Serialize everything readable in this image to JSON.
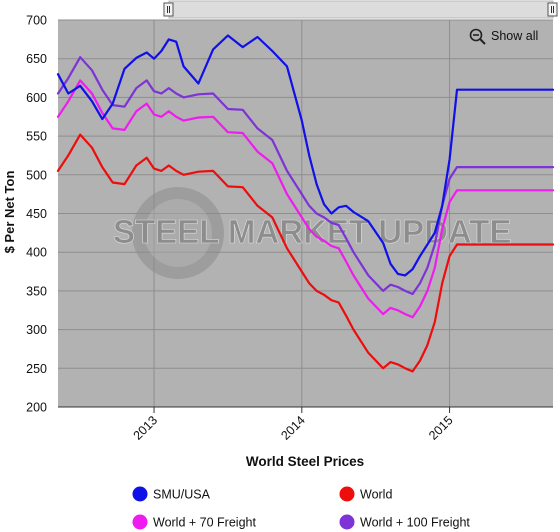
{
  "chart_data": {
    "type": "line",
    "title": "",
    "xlabel": "World Steel Prices",
    "ylabel": "$ Per Net Ton",
    "ylim": [
      200,
      700
    ],
    "yticks": [
      200,
      250,
      300,
      350,
      400,
      450,
      500,
      550,
      600,
      650,
      700
    ],
    "xlim": [
      2012.35,
      2015.7
    ],
    "xticks": [
      {
        "label": "2013",
        "value": 2013.0
      },
      {
        "label": "2014",
        "value": 2014.0
      },
      {
        "label": "2015",
        "value": 2015.0
      }
    ],
    "grid": true,
    "legend_position": "bottom",
    "watermark": "STEEL MARKET UPDATE",
    "zoom_button": "Show all",
    "series": [
      {
        "name": "SMU/USA",
        "color": "#1010e8",
        "x": [
          2012.35,
          2012.42,
          2012.5,
          2012.58,
          2012.65,
          2012.72,
          2012.8,
          2012.88,
          2012.95,
          2013.0,
          2013.05,
          2013.1,
          2013.15,
          2013.2,
          2013.3,
          2013.4,
          2013.5,
          2013.6,
          2013.7,
          2013.8,
          2013.9,
          2014.0,
          2014.05,
          2014.1,
          2014.15,
          2014.2,
          2014.25,
          2014.3,
          2014.35,
          2014.45,
          2014.55,
          2014.6,
          2014.65,
          2014.7,
          2014.75,
          2014.8,
          2014.85,
          2014.9,
          2014.95,
          2015.0,
          2015.05,
          2015.1,
          2015.2,
          2015.3,
          2015.4,
          2015.45,
          2015.5,
          2015.55,
          2015.6,
          2015.65,
          2015.7
        ],
        "values": [
          630,
          605,
          615,
          595,
          572,
          592,
          637,
          651,
          658,
          650,
          660,
          675,
          672,
          640,
          618,
          662,
          680,
          665,
          678,
          660,
          640,
          570,
          525,
          488,
          462,
          450,
          458,
          460,
          452,
          440,
          412,
          385,
          372,
          370,
          378,
          395,
          410,
          425,
          460,
          520,
          610,
          610,
          610,
          610,
          610,
          610,
          610,
          610,
          610,
          610,
          610
        ]
      },
      {
        "name": "World",
        "color": "#ee0d0d",
        "x": [
          2012.35,
          2012.42,
          2012.5,
          2012.58,
          2012.65,
          2012.72,
          2012.8,
          2012.88,
          2012.95,
          2013.0,
          2013.05,
          2013.1,
          2013.15,
          2013.2,
          2013.3,
          2013.4,
          2013.5,
          2013.6,
          2013.7,
          2013.8,
          2013.9,
          2014.0,
          2014.05,
          2014.1,
          2014.15,
          2014.2,
          2014.25,
          2014.3,
          2014.35,
          2014.45,
          2014.55,
          2014.6,
          2014.65,
          2014.7,
          2014.75,
          2014.8,
          2014.85,
          2014.9,
          2014.95,
          2015.0,
          2015.05,
          2015.1,
          2015.2,
          2015.3,
          2015.4,
          2015.45,
          2015.5,
          2015.55,
          2015.6,
          2015.65,
          2015.7
        ],
        "values": [
          505,
          525,
          552,
          535,
          510,
          490,
          488,
          512,
          522,
          508,
          505,
          512,
          505,
          500,
          504,
          505,
          485,
          484,
          460,
          445,
          405,
          375,
          360,
          350,
          345,
          338,
          335,
          318,
          300,
          270,
          250,
          258,
          255,
          250,
          246,
          260,
          280,
          310,
          360,
          395,
          410,
          410,
          410,
          410,
          410,
          410,
          410,
          410,
          410,
          410,
          410
        ]
      },
      {
        "name": "World + 70 Freight",
        "color": "#ee1cee",
        "x": [
          2012.35,
          2012.42,
          2012.5,
          2012.58,
          2012.65,
          2012.72,
          2012.8,
          2012.88,
          2012.95,
          2013.0,
          2013.05,
          2013.1,
          2013.15,
          2013.2,
          2013.3,
          2013.4,
          2013.5,
          2013.6,
          2013.7,
          2013.8,
          2013.9,
          2014.0,
          2014.05,
          2014.1,
          2014.15,
          2014.2,
          2014.25,
          2014.3,
          2014.35,
          2014.45,
          2014.55,
          2014.6,
          2014.65,
          2014.7,
          2014.75,
          2014.8,
          2014.85,
          2014.9,
          2014.95,
          2015.0,
          2015.05,
          2015.1,
          2015.2,
          2015.3,
          2015.4,
          2015.45,
          2015.5,
          2015.55,
          2015.6,
          2015.65,
          2015.7
        ],
        "values": [
          575,
          595,
          622,
          605,
          580,
          560,
          558,
          582,
          592,
          578,
          575,
          582,
          575,
          570,
          574,
          575,
          555,
          554,
          530,
          515,
          475,
          445,
          430,
          420,
          415,
          408,
          405,
          388,
          370,
          340,
          320,
          328,
          325,
          320,
          316,
          330,
          350,
          380,
          430,
          465,
          480,
          480,
          480,
          480,
          480,
          480,
          480,
          480,
          480,
          480,
          480
        ]
      },
      {
        "name": "World + 100 Freight",
        "color": "#7d33d6",
        "x": [
          2012.35,
          2012.42,
          2012.5,
          2012.58,
          2012.65,
          2012.72,
          2012.8,
          2012.88,
          2012.95,
          2013.0,
          2013.05,
          2013.1,
          2013.15,
          2013.2,
          2013.3,
          2013.4,
          2013.5,
          2013.6,
          2013.7,
          2013.8,
          2013.9,
          2014.0,
          2014.05,
          2014.1,
          2014.15,
          2014.2,
          2014.25,
          2014.3,
          2014.35,
          2014.45,
          2014.55,
          2014.6,
          2014.65,
          2014.7,
          2014.75,
          2014.8,
          2014.85,
          2014.9,
          2014.95,
          2015.0,
          2015.05,
          2015.1,
          2015.2,
          2015.3,
          2015.4,
          2015.45,
          2015.5,
          2015.55,
          2015.6,
          2015.65,
          2015.7
        ],
        "values": [
          605,
          625,
          652,
          635,
          610,
          590,
          588,
          612,
          622,
          608,
          605,
          612,
          605,
          600,
          604,
          605,
          585,
          584,
          560,
          545,
          505,
          475,
          460,
          450,
          445,
          438,
          435,
          418,
          400,
          370,
          350,
          358,
          355,
          350,
          346,
          360,
          380,
          410,
          460,
          495,
          510,
          510,
          510,
          510,
          510,
          510,
          510,
          510,
          510,
          510,
          510
        ]
      }
    ]
  }
}
